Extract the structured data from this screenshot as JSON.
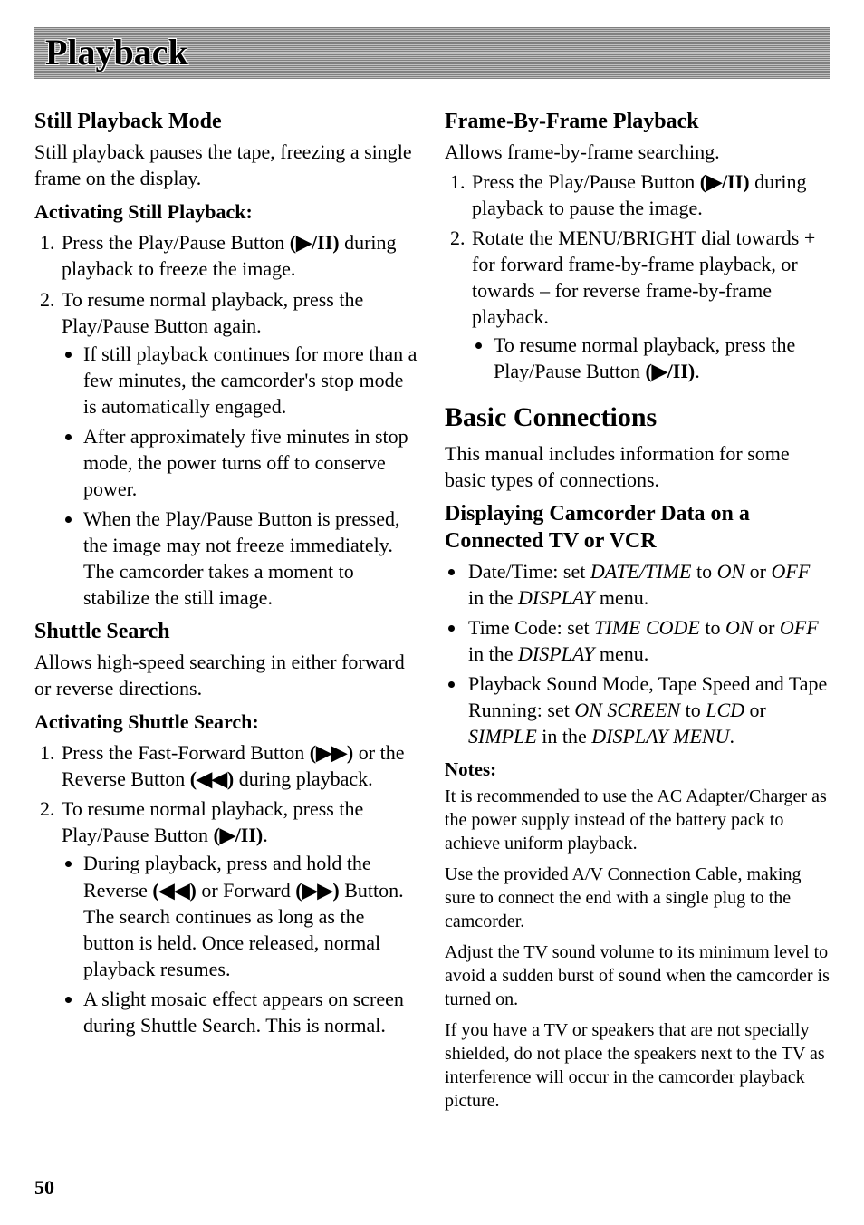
{
  "title": "Playback",
  "page_number": "50",
  "icons": {
    "play_pause": "(▶/II)",
    "ff": "(▶▶)",
    "rew": "(◀◀)"
  },
  "left": {
    "still": {
      "heading": "Still Playback Mode",
      "intro": "Still playback pauses the tape, freezing a single frame on the display.",
      "sub_heading": "Activating Still Playback:",
      "step1_a": "Press the Play/Pause Button ",
      "step1_b": " during playback to freeze the image.",
      "step2": "To resume normal playback, press the Play/Pause Button again.",
      "b1": "If still playback continues for more than a few minutes, the camcorder's stop mode is automatically engaged.",
      "b2": "After approximately five minutes in stop mode, the power turns off to conserve power.",
      "b3": "When the Play/Pause Button is pressed, the image may not freeze immediately. The camcorder takes a moment to stabilize the still image."
    },
    "shuttle": {
      "heading": "Shuttle Search",
      "intro": "Allows high-speed searching in either forward or reverse directions.",
      "sub_heading": "Activating Shuttle Search:",
      "step1_a": "Press the Fast-Forward Button ",
      "step1_b": " or the Reverse Button ",
      "step1_c": " during playback.",
      "step2_a": "To resume normal playback, press the Play/Pause Button ",
      "step2_b": ".",
      "b1_a": "During playback, press and hold the Reverse ",
      "b1_b": " or Forward ",
      "b1_c": " Button. The search continues as long as the button is held. Once released, normal playback resumes.",
      "b2": "A slight mosaic effect appears on screen during Shuttle Search. This is normal."
    }
  },
  "right": {
    "frame": {
      "heading": "Frame-By-Frame Playback",
      "intro": "Allows frame-by-frame searching.",
      "step1_a": "Press the Play/Pause Button ",
      "step1_b": " during playback to pause the image.",
      "step2": "Rotate the MENU/BRIGHT dial towards + for forward frame-by-frame playback, or towards – for reverse frame-by-frame playback.",
      "sub_b_a": "To resume normal playback, press the Play/Pause Button ",
      "sub_b_b": "."
    },
    "basic": {
      "heading": "Basic Connections",
      "intro": "This manual includes information for some basic types of connections.",
      "display_heading": "Displaying Camcorder Data on a Connected TV or VCR",
      "b1_a": "Date/Time: set ",
      "b1_i1": "DATE/TIME",
      "b1_b": " to ",
      "b1_i2": "ON",
      "b1_c": " or ",
      "b1_i3": "OFF",
      "b1_d": " in the ",
      "b1_i4": "DISPLAY",
      "b1_e": " menu.",
      "b2_a": "Time Code: set ",
      "b2_i1": "TIME CODE",
      "b2_b": " to ",
      "b2_i2": "ON",
      "b2_c": " or ",
      "b2_i3": "OFF",
      "b2_d": " in the ",
      "b2_i4": "DISPLAY",
      "b2_e": " menu.",
      "b3_a": "Playback Sound Mode, Tape Speed and Tape Running: set ",
      "b3_i1": "ON SCREEN",
      "b3_b": " to ",
      "b3_i2": "LCD",
      "b3_c": " or ",
      "b3_i3": "SIMPLE",
      "b3_d": " in the ",
      "b3_i4": "DISPLAY MENU",
      "b3_e": ".",
      "notes_label": "Notes:",
      "n1": "It is recommended to use the AC Adapter/Charger as the power supply instead of the battery pack to achieve uniform playback.",
      "n2": "Use the provided A/V Connection Cable, making sure to connect the end with a single plug to the camcorder.",
      "n3": "Adjust the TV sound volume to its minimum level to avoid a sudden burst of sound when the camcorder is turned on.",
      "n4": "If you have a TV or speakers that are not specially shielded, do not place the speakers next to the TV as interference will occur in the camcorder playback picture."
    }
  }
}
